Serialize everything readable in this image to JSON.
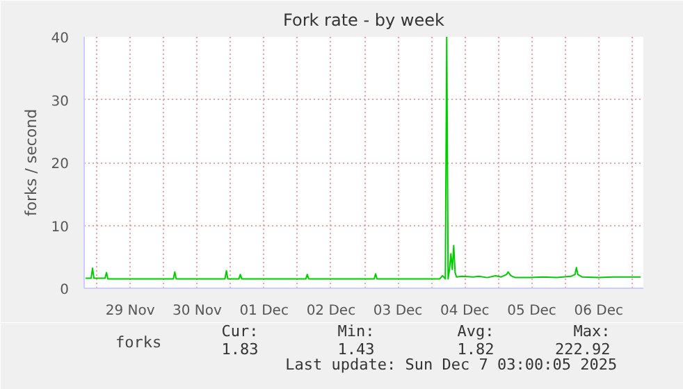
{
  "chart_data": {
    "type": "line",
    "title": "Fork rate - by week",
    "ylabel": "forks / second",
    "xlim": [
      "2025-11-28T19:30",
      "2025-12-07T04:00"
    ],
    "ylim": [
      0,
      40
    ],
    "yticks": [
      0,
      10,
      20,
      30,
      40
    ],
    "xticks": [
      {
        "value": "2025-11-29T00:00",
        "label": null
      },
      {
        "value": "2025-11-29T12:00",
        "label": "29 Nov"
      },
      {
        "value": "2025-11-30T00:00",
        "label": null
      },
      {
        "value": "2025-11-30T12:00",
        "label": "30 Nov"
      },
      {
        "value": "2025-12-01T00:00",
        "label": null
      },
      {
        "value": "2025-12-01T12:00",
        "label": "01 Dec"
      },
      {
        "value": "2025-12-02T00:00",
        "label": null
      },
      {
        "value": "2025-12-02T12:00",
        "label": "02 Dec"
      },
      {
        "value": "2025-12-03T00:00",
        "label": null
      },
      {
        "value": "2025-12-03T12:00",
        "label": "03 Dec"
      },
      {
        "value": "2025-12-04T00:00",
        "label": null
      },
      {
        "value": "2025-12-04T12:00",
        "label": "04 Dec"
      },
      {
        "value": "2025-12-05T00:00",
        "label": null
      },
      {
        "value": "2025-12-05T12:00",
        "label": "05 Dec"
      },
      {
        "value": "2025-12-06T00:00",
        "label": null
      },
      {
        "value": "2025-12-06T12:00",
        "label": "06 Dec"
      },
      {
        "value": "2025-12-07T00:00",
        "label": null
      }
    ],
    "grid": true,
    "legend": "bottom",
    "marker": "none",
    "line_style": "solid",
    "series": [
      {
        "name": "forks",
        "color": "#00cc00",
        "x": [
          "2025-11-28T20:00",
          "2025-11-28T22:00",
          "2025-11-28T22:30",
          "2025-11-28T23:00",
          "2025-11-29T03:00",
          "2025-11-29T03:30",
          "2025-11-29T04:00",
          "2025-11-30T03:30",
          "2025-11-30T04:00",
          "2025-11-30T04:30",
          "2025-11-30T22:00",
          "2025-11-30T22:30",
          "2025-11-30T23:00",
          "2025-12-01T03:00",
          "2025-12-01T03:30",
          "2025-12-01T04:00",
          "2025-12-02T03:00",
          "2025-12-02T03:30",
          "2025-12-02T04:00",
          "2025-12-03T03:30",
          "2025-12-03T04:00",
          "2025-12-03T04:30",
          "2025-12-04T03:00",
          "2025-12-04T04:00",
          "2025-12-04T05:00",
          "2025-12-04T05:30",
          "2025-12-04T06:00",
          "2025-12-04T06:30",
          "2025-12-04T07:00",
          "2025-12-04T07:30",
          "2025-12-04T08:00",
          "2025-12-04T08:30",
          "2025-12-04T09:00",
          "2025-12-04T11:00",
          "2025-12-04T15:00",
          "2025-12-04T17:00",
          "2025-12-04T20:00",
          "2025-12-04T23:00",
          "2025-12-05T01:00",
          "2025-12-05T03:00",
          "2025-12-05T03:30",
          "2025-12-05T04:30",
          "2025-12-05T06:00",
          "2025-12-05T11:00",
          "2025-12-05T16:00",
          "2025-12-05T21:00",
          "2025-12-06T02:00",
          "2025-12-06T03:30",
          "2025-12-06T04:00",
          "2025-12-06T04:30",
          "2025-12-06T06:00",
          "2025-12-06T12:00",
          "2025-12-06T17:00",
          "2025-12-06T22:00",
          "2025-12-07T03:00"
        ],
        "values": [
          1.6,
          1.6,
          3.2,
          1.6,
          1.6,
          2.5,
          1.5,
          1.5,
          2.6,
          1.5,
          1.5,
          2.8,
          1.5,
          1.5,
          2.2,
          1.5,
          1.5,
          2.2,
          1.5,
          1.5,
          2.3,
          1.5,
          1.5,
          2.0,
          1.5,
          40,
          1.5,
          3,
          5.5,
          3,
          6.8,
          2.5,
          1.8,
          1.9,
          1.8,
          1.9,
          1.7,
          2.0,
          1.8,
          2.2,
          2.6,
          2.0,
          1.7,
          1.7,
          1.8,
          1.7,
          1.9,
          2.2,
          3.3,
          2.2,
          1.8,
          1.7,
          1.8,
          1.8,
          1.8
        ]
      }
    ],
    "annotations": [
      "Cur:",
      "Min:",
      "Avg:",
      "Max:",
      "1.83",
      "1.43",
      "1.82",
      "222.92",
      "Last update: Sun Dec  7 03:00:05 2025"
    ]
  }
}
